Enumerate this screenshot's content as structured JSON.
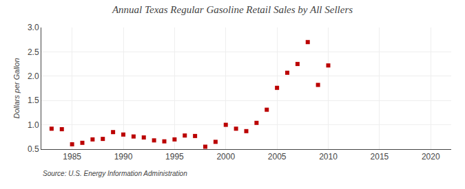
{
  "chart_data": {
    "type": "scatter",
    "title": "Annual Texas Regular Gasoline Retail Sales by All Sellers",
    "ylabel": "Dollars per Gallon",
    "annotations": [
      "Source: U.S. Energy Information Administration"
    ],
    "x": [
      1983,
      1984,
      1985,
      1986,
      1987,
      1988,
      1989,
      1990,
      1991,
      1992,
      1993,
      1994,
      1995,
      1996,
      1997,
      1998,
      1999,
      2000,
      2001,
      2002,
      2003,
      2004,
      2005,
      2006,
      2007,
      2008,
      2009,
      2010
    ],
    "values": [
      0.92,
      0.91,
      0.6,
      0.63,
      0.7,
      0.71,
      0.85,
      0.8,
      0.76,
      0.74,
      0.68,
      0.66,
      0.7,
      0.78,
      0.77,
      0.55,
      0.65,
      1.0,
      0.92,
      0.87,
      1.04,
      1.31,
      1.76,
      2.07,
      2.25,
      2.7,
      1.82,
      2.22
    ],
    "color": "#bb0000",
    "marker": "square",
    "xlim": [
      1982,
      2022
    ],
    "ylim": [
      0.5,
      3.0
    ],
    "xticks": [
      1985,
      1990,
      1995,
      2000,
      2005,
      2010,
      2015,
      2020
    ],
    "yticks": [
      0.5,
      {
        "value": 1.0,
        "label": "1.0"
      },
      1.5,
      {
        "value": 2.0,
        "label": "2.0"
      },
      2.5,
      {
        "value": 3.0,
        "label": "3.0"
      }
    ],
    "grid": true
  }
}
